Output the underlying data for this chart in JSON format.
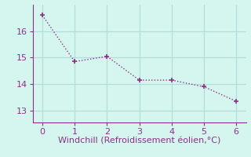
{
  "x": [
    0,
    1,
    2,
    3,
    4,
    5,
    6
  ],
  "y": [
    16.6,
    14.85,
    15.05,
    14.15,
    14.15,
    13.9,
    13.35
  ],
  "line_color": "#883388",
  "marker": "+",
  "marker_size": 5,
  "marker_linewidth": 1.2,
  "xlabel": "Windchill (Refroidissement éolien,°C)",
  "xlim": [
    -0.3,
    6.3
  ],
  "ylim": [
    12.55,
    17.0
  ],
  "yticks": [
    13,
    14,
    15,
    16
  ],
  "xticks": [
    0,
    1,
    2,
    3,
    4,
    5,
    6
  ],
  "background_color": "#d5f5ef",
  "grid_color": "#b0ddd8",
  "line_width": 1.0,
  "xlabel_fontsize": 8,
  "tick_fontsize": 8,
  "tick_color": "#883388",
  "xlabel_color": "#883388",
  "spine_color": "#883388"
}
